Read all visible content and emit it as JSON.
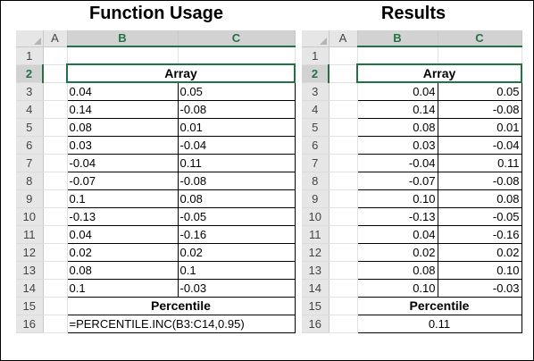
{
  "function_usage": {
    "title": "Function Usage",
    "columns": [
      "A",
      "B",
      "C"
    ],
    "rows": [
      "1",
      "2",
      "3",
      "4",
      "5",
      "6",
      "7",
      "8",
      "9",
      "10",
      "11",
      "12",
      "13",
      "14",
      "15",
      "16"
    ],
    "array_label": "Array",
    "data": [
      [
        "0.04",
        "0.05"
      ],
      [
        "0.14",
        "-0.08"
      ],
      [
        "0.08",
        "0.01"
      ],
      [
        "0.03",
        "-0.04"
      ],
      [
        "-0.04",
        "0.11"
      ],
      [
        "-0.07",
        "-0.08"
      ],
      [
        "0.1",
        "0.08"
      ],
      [
        "-0.13",
        "-0.05"
      ],
      [
        "0.04",
        "-0.16"
      ],
      [
        "0.02",
        "0.02"
      ],
      [
        "0.08",
        "0.1"
      ],
      [
        "0.1",
        "-0.03"
      ]
    ],
    "percentile_label": "Percentile",
    "formula": "=PERCENTILE.INC(B3:C14,0.95)"
  },
  "results": {
    "title": "Results",
    "columns": [
      "A",
      "B",
      "C"
    ],
    "rows": [
      "1",
      "2",
      "3",
      "4",
      "5",
      "6",
      "7",
      "8",
      "9",
      "10",
      "11",
      "12",
      "13",
      "14",
      "15",
      "16"
    ],
    "array_label": "Array",
    "data": [
      [
        "0.04",
        "0.05"
      ],
      [
        "0.14",
        "-0.08"
      ],
      [
        "0.08",
        "0.01"
      ],
      [
        "0.03",
        "-0.04"
      ],
      [
        "-0.04",
        "0.11"
      ],
      [
        "-0.07",
        "-0.08"
      ],
      [
        "0.10",
        "0.08"
      ],
      [
        "-0.13",
        "-0.05"
      ],
      [
        "0.04",
        "-0.16"
      ],
      [
        "0.02",
        "0.02"
      ],
      [
        "0.08",
        "0.10"
      ],
      [
        "0.10",
        "-0.03"
      ]
    ],
    "percentile_label": "Percentile",
    "value": "0.11"
  },
  "colors": {
    "accent": "#217346",
    "header_bg": "#e6e6e6",
    "selected_header_bg": "#d2d2d2"
  }
}
